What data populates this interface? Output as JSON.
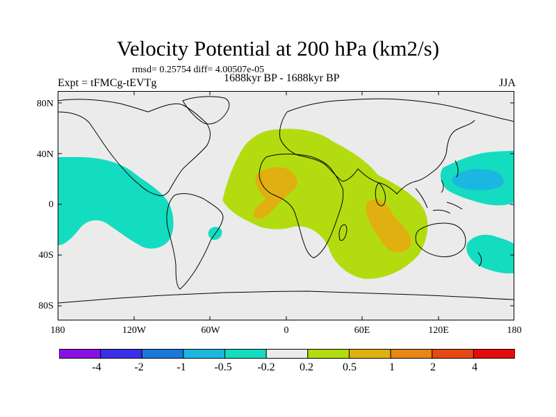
{
  "title": "Velocity Potential at 200 hPa (km2/s)",
  "stats": "rmsd= 0.25754 diff= 4.00507e-05",
  "experiment": "Expt = tFMCg-tEVTg",
  "period": "1688kyr BP - 1688kyr BP",
  "season": "JJA",
  "lat_labels": [
    "80N",
    "40N",
    "0",
    "40S",
    "80S"
  ],
  "lon_labels": [
    "180",
    "120W",
    "60W",
    "0",
    "60E",
    "120E",
    "180"
  ],
  "colorbar": {
    "labels": [
      "-4",
      "-2",
      "-1",
      "-0.5",
      "-0.2",
      "0.2",
      "0.5",
      "1",
      "2",
      "4"
    ],
    "colors": [
      "#8a10e8",
      "#3a2ee8",
      "#1a78d8",
      "#1ab8e0",
      "#14dcc0",
      "#ebebeb",
      "#b2dc10",
      "#e0b010",
      "#e88614",
      "#e84814",
      "#e80a0a"
    ]
  },
  "map_colors": {
    "ocean": "#ebebeb",
    "neg_weak": "#14dcc0",
    "neg_mod": "#1ab8e0",
    "pos_weak": "#b2dc10",
    "pos_mod": "#e0b010",
    "coast": "#000000"
  }
}
